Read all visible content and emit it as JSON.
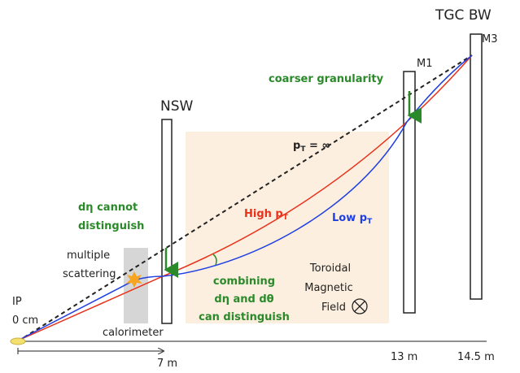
{
  "labels": {
    "tgc": "TGC BW",
    "m3": "M3",
    "m1": "M1",
    "coarser": "coarser granularity",
    "nsw": "NSW",
    "pt_inf": {
      "p": "p",
      "sub": "T",
      "rest": " = ∞"
    },
    "cannot": [
      "dη cannot",
      "distinguish"
    ],
    "high": {
      "p": "High p",
      "sub": "T"
    },
    "low": {
      "p": "Low p",
      "sub": "T"
    },
    "scattering": [
      "multiple",
      "scattering"
    ],
    "combining": [
      "combining",
      "dη and dθ",
      "can distinguish"
    ],
    "field": [
      "Toroidal",
      "Magnetic",
      "Field"
    ],
    "ip": "IP",
    "zero": "0 cm",
    "calorimeter": "calorimeter",
    "d7": "7 m",
    "d13": "13 m",
    "d145": "14.5 m"
  }
}
